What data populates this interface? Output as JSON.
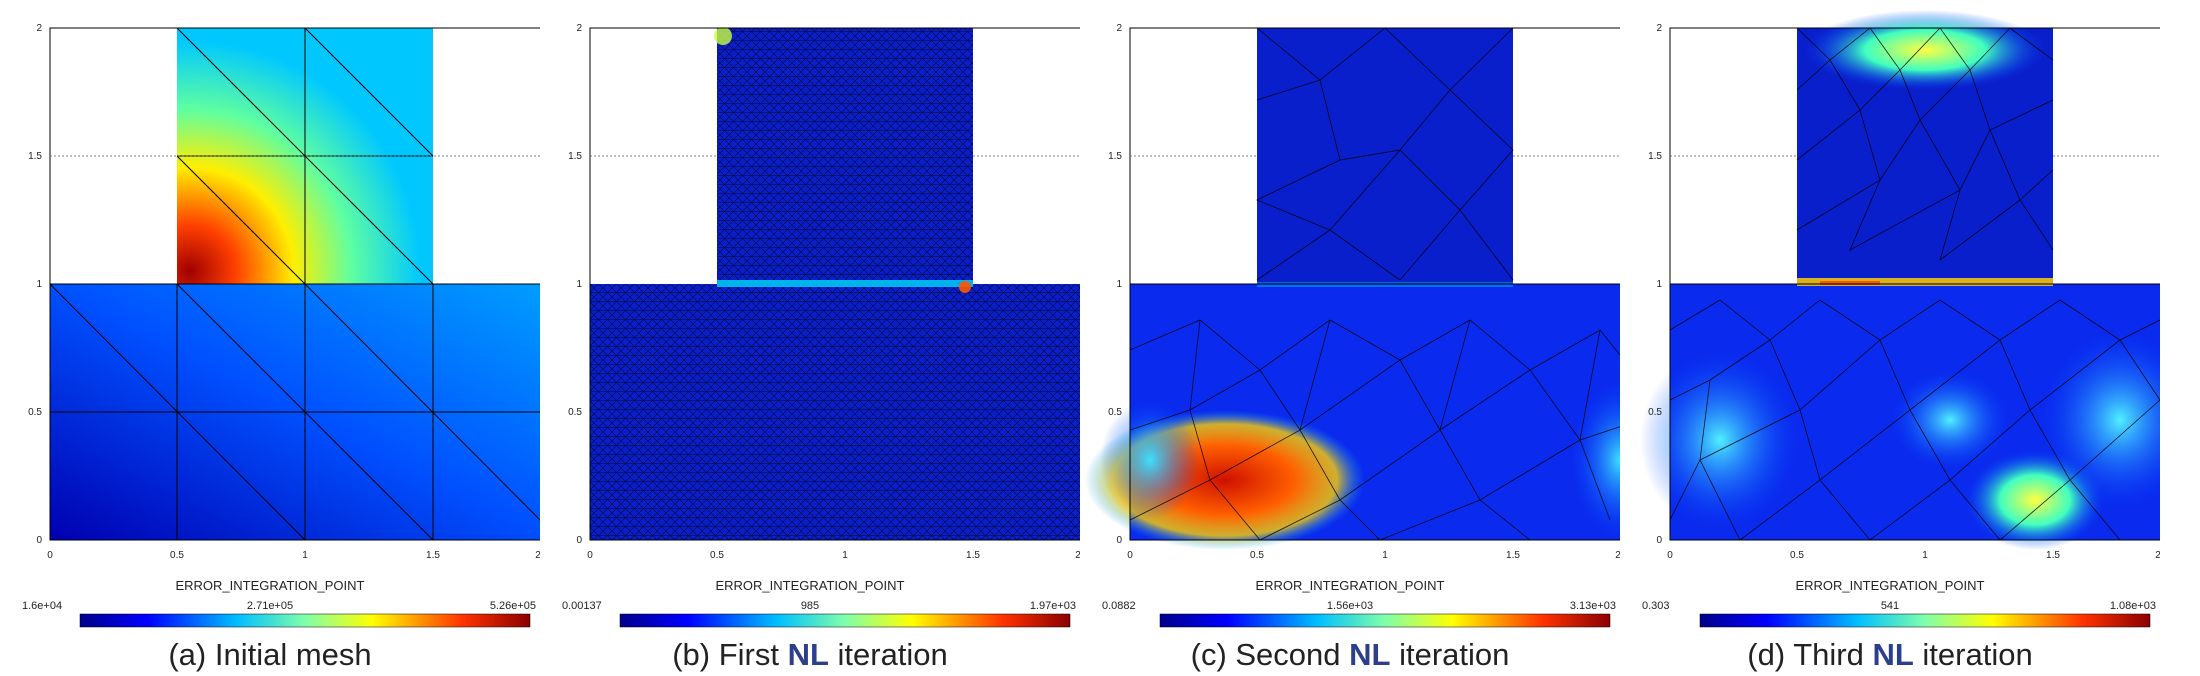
{
  "colors": {
    "jet_low": "#00008b",
    "jet_high": "#8b0000",
    "caption_accent": "#2c3f8c"
  },
  "axes": {
    "x_ticks": [
      "0",
      "0.5",
      "1",
      "1.5",
      "2"
    ],
    "y_ticks": [
      "0",
      "0.5",
      "1",
      "1.5",
      "2"
    ]
  },
  "panels": [
    {
      "caption_pre": "(a) Initial mesh",
      "caption_nl": "",
      "caption_post": "",
      "colorbar": {
        "title": "ERROR_INTEGRATION_POINT",
        "min": "1.6e+04",
        "mid": "2.71e+05",
        "max": "5.26e+05"
      }
    },
    {
      "caption_pre": "(b) First ",
      "caption_nl": "NL",
      "caption_post": " iteration",
      "colorbar": {
        "title": "ERROR_INTEGRATION_POINT",
        "min": "0.00137",
        "mid": "985",
        "max": "1.97e+03"
      }
    },
    {
      "caption_pre": "(c) Second ",
      "caption_nl": "NL",
      "caption_post": " iteration",
      "colorbar": {
        "title": "ERROR_INTEGRATION_POINT",
        "min": "0.0882",
        "mid": "1.56e+03",
        "max": "3.13e+03"
      }
    },
    {
      "caption_pre": "(d) Third ",
      "caption_nl": "NL",
      "caption_post": " iteration",
      "colorbar": {
        "title": "ERROR_INTEGRATION_POINT",
        "min": "0.303",
        "mid": "541",
        "max": "1.08e+03"
      }
    }
  ]
}
